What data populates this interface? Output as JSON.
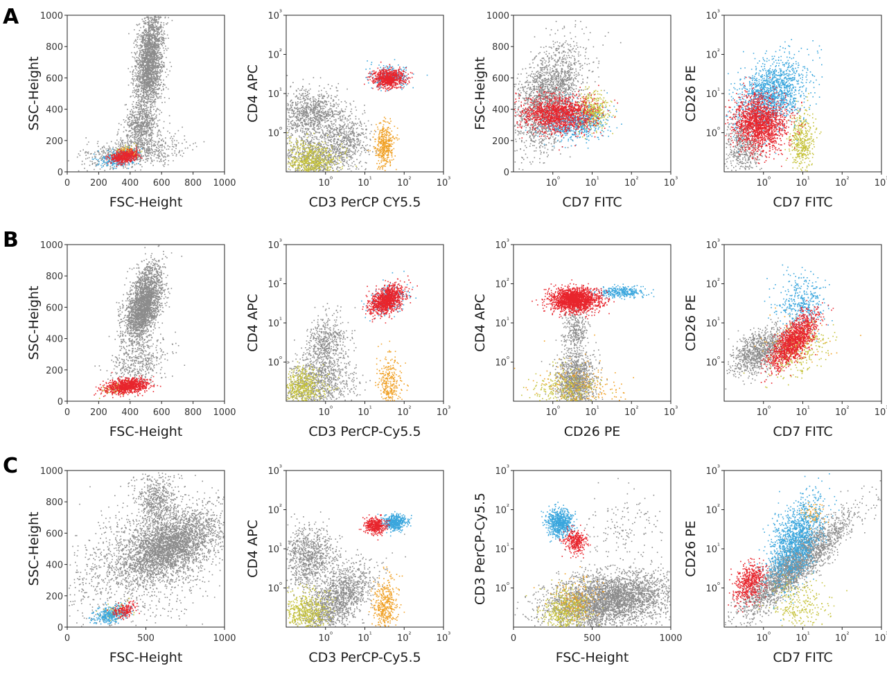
{
  "figure": {
    "rows": [
      {
        "label": "A"
      },
      {
        "label": "B"
      },
      {
        "label": "C"
      }
    ],
    "colors": {
      "gray": "#8c8c8c",
      "red": "#e8242c",
      "blue": "#3aa6dd",
      "orange": "#f0a024",
      "olive": "#c5c23a"
    }
  },
  "chart_data": [
    {
      "row": "A",
      "type": "scatter",
      "xlabel": "FSC-Height",
      "ylabel": "SSC-Height",
      "x_scale": "linear",
      "xlim": [
        0,
        1000
      ],
      "x_ticks": [
        "0",
        "200",
        "400",
        "600",
        "800",
        "1000"
      ],
      "x_tick_values": [
        0,
        200,
        400,
        600,
        800,
        1000
      ],
      "y_scale": "linear",
      "ylim": [
        0,
        1000
      ],
      "y_ticks": [
        "0",
        "200",
        "400",
        "600",
        "800",
        "1000"
      ],
      "y_tick_values": [
        0,
        200,
        400,
        600,
        800,
        1000
      ],
      "clusters": [
        {
          "color": "gray",
          "cx": 520,
          "cy": 700,
          "sx": 45,
          "sy": 170,
          "n": 2200,
          "rho": 0.3
        },
        {
          "color": "gray",
          "cx": 470,
          "cy": 300,
          "sx": 60,
          "sy": 60,
          "n": 500,
          "rho": 0
        },
        {
          "color": "gray",
          "cx": 420,
          "cy": 130,
          "sx": 160,
          "sy": 50,
          "n": 700,
          "rho": 0.3
        },
        {
          "color": "blue",
          "cx": 330,
          "cy": 90,
          "sx": 60,
          "sy": 25,
          "n": 300,
          "rho": 0.3
        },
        {
          "color": "olive",
          "cx": 360,
          "cy": 120,
          "sx": 40,
          "sy": 20,
          "n": 150,
          "rho": 0.2
        },
        {
          "color": "orange",
          "cx": 380,
          "cy": 130,
          "sx": 30,
          "sy": 15,
          "n": 80,
          "rho": 0
        },
        {
          "color": "red",
          "cx": 360,
          "cy": 100,
          "sx": 45,
          "sy": 20,
          "n": 450,
          "rho": 0.3
        }
      ]
    },
    {
      "row": "A",
      "type": "scatter",
      "xlabel": "CD3 PerCP CY5.5",
      "ylabel": "CD4 APC",
      "x_scale": "log",
      "xlim": [
        -1,
        3
      ],
      "x_ticks": [
        "10⁰",
        "10¹",
        "10²",
        "10³"
      ],
      "x_tick_values": [
        0,
        1,
        2,
        3
      ],
      "y_scale": "log",
      "ylim": [
        -1,
        3
      ],
      "y_ticks": [
        "10⁰",
        "10¹",
        "10²",
        "10³"
      ],
      "y_tick_values": [
        0,
        1,
        2,
        3
      ],
      "clusters": [
        {
          "color": "gray",
          "cx": -0.4,
          "cy": 0.5,
          "sx": 0.4,
          "sy": 0.3,
          "n": 900,
          "rho": 0
        },
        {
          "color": "gray",
          "cx": -0.3,
          "cy": -0.6,
          "sx": 0.5,
          "sy": 0.3,
          "n": 800,
          "rho": 0
        },
        {
          "color": "gray",
          "cx": 0.5,
          "cy": -0.2,
          "sx": 0.3,
          "sy": 0.35,
          "n": 500,
          "rho": 0
        },
        {
          "color": "olive",
          "cx": -0.4,
          "cy": -0.7,
          "sx": 0.35,
          "sy": 0.25,
          "n": 600,
          "rho": 0
        },
        {
          "color": "orange",
          "cx": 1.5,
          "cy": -0.3,
          "sx": 0.12,
          "sy": 0.3,
          "n": 400,
          "rho": 0
        },
        {
          "color": "blue",
          "cx": 1.6,
          "cy": 1.45,
          "sx": 0.25,
          "sy": 0.15,
          "n": 250,
          "rho": 0
        },
        {
          "color": "red",
          "cx": 1.6,
          "cy": 1.4,
          "sx": 0.2,
          "sy": 0.12,
          "n": 700,
          "rho": 0
        }
      ]
    },
    {
      "row": "A",
      "type": "scatter",
      "xlabel": "CD7 FITC",
      "ylabel": "FSC-Height",
      "x_scale": "log",
      "xlim": [
        -1,
        3
      ],
      "x_ticks": [
        "10⁰",
        "10¹",
        "10²",
        "10³"
      ],
      "x_tick_values": [
        0,
        1,
        2,
        3
      ],
      "y_scale": "linear",
      "ylim": [
        0,
        1000
      ],
      "y_ticks": [
        "0",
        "200",
        "400",
        "600",
        "800",
        "1000"
      ],
      "y_tick_values": [
        0,
        200,
        400,
        600,
        800,
        1000
      ],
      "clusters": [
        {
          "color": "gray",
          "cx": -0.1,
          "cy": 480,
          "sx": 0.45,
          "sy": 170,
          "n": 2000,
          "rho": 0.45
        },
        {
          "color": "olive",
          "cx": 1.0,
          "cy": 380,
          "sx": 0.2,
          "sy": 60,
          "n": 400,
          "rho": 0
        },
        {
          "color": "blue",
          "cx": 0.5,
          "cy": 320,
          "sx": 0.4,
          "sy": 60,
          "n": 600,
          "rho": 0
        },
        {
          "color": "red",
          "cx": 0.1,
          "cy": 370,
          "sx": 0.45,
          "sy": 60,
          "n": 1400,
          "rho": 0
        }
      ]
    },
    {
      "row": "A",
      "type": "scatter",
      "xlabel": "CD7 FITC",
      "ylabel": "CD26 PE",
      "x_scale": "log",
      "xlim": [
        -1,
        3
      ],
      "x_ticks": [
        "10⁰",
        "10¹",
        "10²",
        "10³"
      ],
      "x_tick_values": [
        0,
        1,
        2,
        3
      ],
      "y_scale": "log",
      "ylim": [
        -1,
        3
      ],
      "y_ticks": [
        "10⁰",
        "10¹",
        "10²",
        "10³"
      ],
      "y_tick_values": [
        0,
        1,
        2,
        3
      ],
      "clusters": [
        {
          "color": "gray",
          "cx": -0.5,
          "cy": -0.3,
          "sx": 0.25,
          "sy": 0.4,
          "n": 500,
          "rho": 0
        },
        {
          "color": "blue",
          "cx": 0.2,
          "cy": 1.0,
          "sx": 0.45,
          "sy": 0.45,
          "n": 1500,
          "rho": 0.3
        },
        {
          "color": "olive",
          "cx": 0.95,
          "cy": -0.2,
          "sx": 0.15,
          "sy": 0.4,
          "n": 400,
          "rho": 0
        },
        {
          "color": "red",
          "cx": -0.1,
          "cy": 0.25,
          "sx": 0.35,
          "sy": 0.35,
          "n": 1600,
          "rho": 0
        }
      ]
    },
    {
      "row": "B",
      "type": "scatter",
      "xlabel": "FSC-Height",
      "ylabel": "SSC-Height",
      "x_scale": "linear",
      "xlim": [
        0,
        1000
      ],
      "x_ticks": [
        "0",
        "200",
        "400",
        "600",
        "800",
        "1000"
      ],
      "x_tick_values": [
        0,
        200,
        400,
        600,
        800,
        1000
      ],
      "y_scale": "linear",
      "ylim": [
        0,
        1000
      ],
      "y_ticks": [
        "0",
        "200",
        "400",
        "600",
        "800",
        "1000"
      ],
      "y_tick_values": [
        0,
        200,
        400,
        600,
        800,
        1000
      ],
      "clusters": [
        {
          "color": "gray",
          "cx": 480,
          "cy": 620,
          "sx": 60,
          "sy": 120,
          "n": 2500,
          "rho": 0.5
        },
        {
          "color": "gray",
          "cx": 450,
          "cy": 250,
          "sx": 90,
          "sy": 80,
          "n": 400,
          "rho": 0.3
        },
        {
          "color": "olive",
          "cx": 330,
          "cy": 90,
          "sx": 50,
          "sy": 20,
          "n": 150,
          "rho": 0.3
        },
        {
          "color": "red",
          "cx": 380,
          "cy": 100,
          "sx": 70,
          "sy": 25,
          "n": 900,
          "rho": 0.3
        }
      ]
    },
    {
      "row": "B",
      "type": "scatter",
      "xlabel": "CD3 PerCP-Cy5.5",
      "ylabel": "CD4 APC",
      "x_scale": "log",
      "xlim": [
        -1,
        3
      ],
      "x_ticks": [
        "10⁰",
        "10¹",
        "10²",
        "10³"
      ],
      "x_tick_values": [
        0,
        1,
        2,
        3
      ],
      "y_scale": "log",
      "ylim": [
        -1,
        3
      ],
      "y_ticks": [
        "10⁰",
        "10¹",
        "10²",
        "10³"
      ],
      "y_tick_values": [
        0,
        1,
        2,
        3
      ],
      "clusters": [
        {
          "color": "gray",
          "cx": 0,
          "cy": 0.5,
          "sx": 0.25,
          "sy": 0.35,
          "n": 500,
          "rho": 0.2
        },
        {
          "color": "gray",
          "cx": -0.2,
          "cy": -0.5,
          "sx": 0.5,
          "sy": 0.35,
          "n": 900,
          "rho": 0
        },
        {
          "color": "olive",
          "cx": -0.6,
          "cy": -0.6,
          "sx": 0.3,
          "sy": 0.25,
          "n": 500,
          "rho": 0
        },
        {
          "color": "orange",
          "cx": 1.6,
          "cy": -0.5,
          "sx": 0.15,
          "sy": 0.35,
          "n": 300,
          "rho": 0
        },
        {
          "color": "blue",
          "cx": 1.6,
          "cy": 1.6,
          "sx": 0.25,
          "sy": 0.2,
          "n": 250,
          "rho": 0.4
        },
        {
          "color": "red",
          "cx": 1.55,
          "cy": 1.6,
          "sx": 0.22,
          "sy": 0.18,
          "n": 1100,
          "rho": 0.4
        }
      ]
    },
    {
      "row": "B",
      "type": "scatter",
      "xlabel": "CD26 PE",
      "ylabel": "CD4 APC",
      "x_scale": "log",
      "xlim": [
        -1,
        3
      ],
      "x_ticks": [
        "10⁰",
        "10¹",
        "10²",
        "10³"
      ],
      "x_tick_values": [
        0,
        1,
        2,
        3
      ],
      "y_scale": "log",
      "ylim": [
        -1,
        3
      ],
      "y_ticks": [
        "10⁰",
        "10¹",
        "10²",
        "10³"
      ],
      "y_tick_values": [
        0,
        1,
        2,
        3
      ],
      "clusters": [
        {
          "color": "gray",
          "cx": 0.55,
          "cy": -0.5,
          "sx": 0.25,
          "sy": 0.4,
          "n": 1200,
          "rho": 0
        },
        {
          "color": "gray",
          "cx": 0.55,
          "cy": 0.8,
          "sx": 0.15,
          "sy": 0.3,
          "n": 300,
          "rho": 0
        },
        {
          "color": "olive",
          "cx": 0.3,
          "cy": -0.7,
          "sx": 0.45,
          "sy": 0.3,
          "n": 300,
          "rho": 0
        },
        {
          "color": "orange",
          "cx": 0.7,
          "cy": -0.6,
          "sx": 0.55,
          "sy": 0.35,
          "n": 200,
          "rho": 0
        },
        {
          "color": "blue",
          "cx": 1.7,
          "cy": 1.8,
          "sx": 0.3,
          "sy": 0.07,
          "n": 300,
          "rho": 0
        },
        {
          "color": "red",
          "cx": 0.55,
          "cy": 1.6,
          "sx": 0.3,
          "sy": 0.15,
          "n": 1800,
          "rho": 0
        }
      ]
    },
    {
      "row": "B",
      "type": "scatter",
      "xlabel": "CD7 FITC",
      "ylabel": "CD26 PE",
      "x_scale": "log",
      "xlim": [
        -1,
        3
      ],
      "x_ticks": [
        "10⁰",
        "10¹",
        "10²",
        "10³"
      ],
      "x_tick_values": [
        0,
        1,
        2,
        3
      ],
      "y_scale": "log",
      "ylim": [
        -1,
        3
      ],
      "y_ticks": [
        "10⁰",
        "10¹",
        "10²",
        "10³"
      ],
      "y_tick_values": [
        0,
        1,
        2,
        3
      ],
      "clusters": [
        {
          "color": "gray",
          "cx": -0.1,
          "cy": 0.3,
          "sx": 0.35,
          "sy": 0.3,
          "n": 1000,
          "rho": 0.5
        },
        {
          "color": "blue",
          "cx": 0.95,
          "cy": 1.5,
          "sx": 0.3,
          "sy": 0.35,
          "n": 400,
          "rho": 0
        },
        {
          "color": "olive",
          "cx": 0.9,
          "cy": 0.3,
          "sx": 0.35,
          "sy": 0.35,
          "n": 300,
          "rho": 0.5
        },
        {
          "color": "orange",
          "cx": 0.9,
          "cy": 0.6,
          "sx": 0.45,
          "sy": 0.4,
          "n": 80,
          "rho": 0
        },
        {
          "color": "red",
          "cx": 0.75,
          "cy": 0.55,
          "sx": 0.3,
          "sy": 0.35,
          "n": 1300,
          "rho": 0.7
        }
      ]
    },
    {
      "row": "C",
      "type": "scatter",
      "xlabel": "FSC-Height",
      "ylabel": "SSC-Height",
      "x_scale": "linear",
      "xlim": [
        0,
        1000
      ],
      "x_ticks": [
        "0",
        "500",
        "1000"
      ],
      "x_tick_values": [
        0,
        500,
        1000
      ],
      "y_scale": "linear",
      "ylim": [
        0,
        1000
      ],
      "y_ticks": [
        "0",
        "200",
        "400",
        "600",
        "800",
        "1000"
      ],
      "y_tick_values": [
        0,
        200,
        400,
        600,
        800,
        1000
      ],
      "clusters": [
        {
          "color": "gray",
          "cx": 650,
          "cy": 520,
          "sx": 160,
          "sy": 110,
          "n": 3000,
          "rho": 0.5
        },
        {
          "color": "gray",
          "cx": 560,
          "cy": 820,
          "sx": 60,
          "sy": 80,
          "n": 500,
          "rho": 0
        },
        {
          "color": "gray",
          "cx": 500,
          "cy": 450,
          "sx": 280,
          "sy": 220,
          "n": 1300,
          "rho": 0.4
        },
        {
          "color": "blue",
          "cx": 270,
          "cy": 80,
          "sx": 50,
          "sy": 30,
          "n": 300,
          "rho": 0.4
        },
        {
          "color": "olive",
          "cx": 300,
          "cy": 100,
          "sx": 45,
          "sy": 25,
          "n": 120,
          "rho": 0.3
        },
        {
          "color": "red",
          "cx": 360,
          "cy": 110,
          "sx": 40,
          "sy": 25,
          "n": 150,
          "rho": 0.3
        }
      ]
    },
    {
      "row": "C",
      "type": "scatter",
      "xlabel": "CD3 PerCP-Cy5.5",
      "ylabel": "CD4 APC",
      "x_scale": "log",
      "xlim": [
        -1,
        3
      ],
      "x_ticks": [
        "10⁰",
        "10¹",
        "10²",
        "10³"
      ],
      "x_tick_values": [
        0,
        1,
        2,
        3
      ],
      "y_scale": "log",
      "ylim": [
        -1,
        3
      ],
      "y_ticks": [
        "10⁰",
        "10¹",
        "10²",
        "10³"
      ],
      "y_tick_values": [
        0,
        1,
        2,
        3
      ],
      "clusters": [
        {
          "color": "gray",
          "cx": -0.4,
          "cy": 0.8,
          "sx": 0.35,
          "sy": 0.4,
          "n": 900,
          "rho": 0
        },
        {
          "color": "gray",
          "cx": 0.3,
          "cy": -0.3,
          "sx": 0.45,
          "sy": 0.45,
          "n": 1400,
          "rho": 0.6
        },
        {
          "color": "olive",
          "cx": -0.5,
          "cy": -0.6,
          "sx": 0.3,
          "sy": 0.25,
          "n": 500,
          "rho": 0
        },
        {
          "color": "orange",
          "cx": 1.5,
          "cy": -0.4,
          "sx": 0.15,
          "sy": 0.35,
          "n": 400,
          "rho": 0
        },
        {
          "color": "blue",
          "cx": 1.75,
          "cy": 1.7,
          "sx": 0.15,
          "sy": 0.1,
          "n": 450,
          "rho": 0
        },
        {
          "color": "red",
          "cx": 1.25,
          "cy": 1.6,
          "sx": 0.13,
          "sy": 0.1,
          "n": 400,
          "rho": 0
        }
      ]
    },
    {
      "row": "C",
      "type": "scatter",
      "xlabel": "FSC-Height",
      "ylabel": "CD3 PerCP-Cy5.5",
      "x_scale": "linear",
      "xlim": [
        0,
        1000
      ],
      "x_ticks": [
        "0",
        "500",
        "1000"
      ],
      "x_tick_values": [
        0,
        500,
        1000
      ],
      "y_scale": "log",
      "ylim": [
        -1,
        3
      ],
      "y_ticks": [
        "10⁰",
        "10¹",
        "10²",
        "10³"
      ],
      "y_tick_values": [
        0,
        1,
        2,
        3
      ],
      "clusters": [
        {
          "color": "gray",
          "cx": 600,
          "cy": -0.3,
          "sx": 200,
          "sy": 0.35,
          "n": 3500,
          "rho": 0.3
        },
        {
          "color": "gray",
          "cx": 700,
          "cy": 1.5,
          "sx": 150,
          "sy": 0.5,
          "n": 150,
          "rho": 0
        },
        {
          "color": "olive",
          "cx": 330,
          "cy": -0.6,
          "sx": 70,
          "sy": 0.3,
          "n": 500,
          "rho": 0
        },
        {
          "color": "orange",
          "cx": 400,
          "cy": -0.3,
          "sx": 80,
          "sy": 0.3,
          "n": 150,
          "rho": 0
        },
        {
          "color": "blue",
          "cx": 290,
          "cy": 1.65,
          "sx": 40,
          "sy": 0.18,
          "n": 700,
          "rho": 0
        },
        {
          "color": "red",
          "cx": 390,
          "cy": 1.2,
          "sx": 35,
          "sy": 0.15,
          "n": 300,
          "rho": 0
        }
      ]
    },
    {
      "row": "C",
      "type": "scatter",
      "xlabel": "CD7 FITC",
      "ylabel": "CD26 PE",
      "x_scale": "log",
      "xlim": [
        -1,
        3
      ],
      "x_ticks": [
        "10⁰",
        "10¹",
        "10²",
        "10³"
      ],
      "x_tick_values": [
        0,
        1,
        2,
        3
      ],
      "y_scale": "log",
      "ylim": [
        -1,
        3
      ],
      "y_ticks": [
        "10⁰",
        "10¹",
        "10²",
        "10³"
      ],
      "y_tick_values": [
        0,
        1,
        2,
        3
      ],
      "clusters": [
        {
          "color": "gray",
          "cx": 0.8,
          "cy": 0.6,
          "sx": 0.7,
          "sy": 0.65,
          "n": 2500,
          "rho": 0.9
        },
        {
          "color": "blue",
          "cx": 0.8,
          "cy": 1.2,
          "sx": 0.35,
          "sy": 0.55,
          "n": 1400,
          "rho": 0.5
        },
        {
          "color": "olive",
          "cx": 0.9,
          "cy": -0.4,
          "sx": 0.35,
          "sy": 0.3,
          "n": 250,
          "rho": 0
        },
        {
          "color": "orange",
          "cx": 1.2,
          "cy": 1.9,
          "sx": 0.15,
          "sy": 0.15,
          "n": 80,
          "rho": 0
        },
        {
          "color": "red",
          "cx": -0.35,
          "cy": 0.15,
          "sx": 0.2,
          "sy": 0.25,
          "n": 500,
          "rho": 0.3
        }
      ]
    }
  ]
}
